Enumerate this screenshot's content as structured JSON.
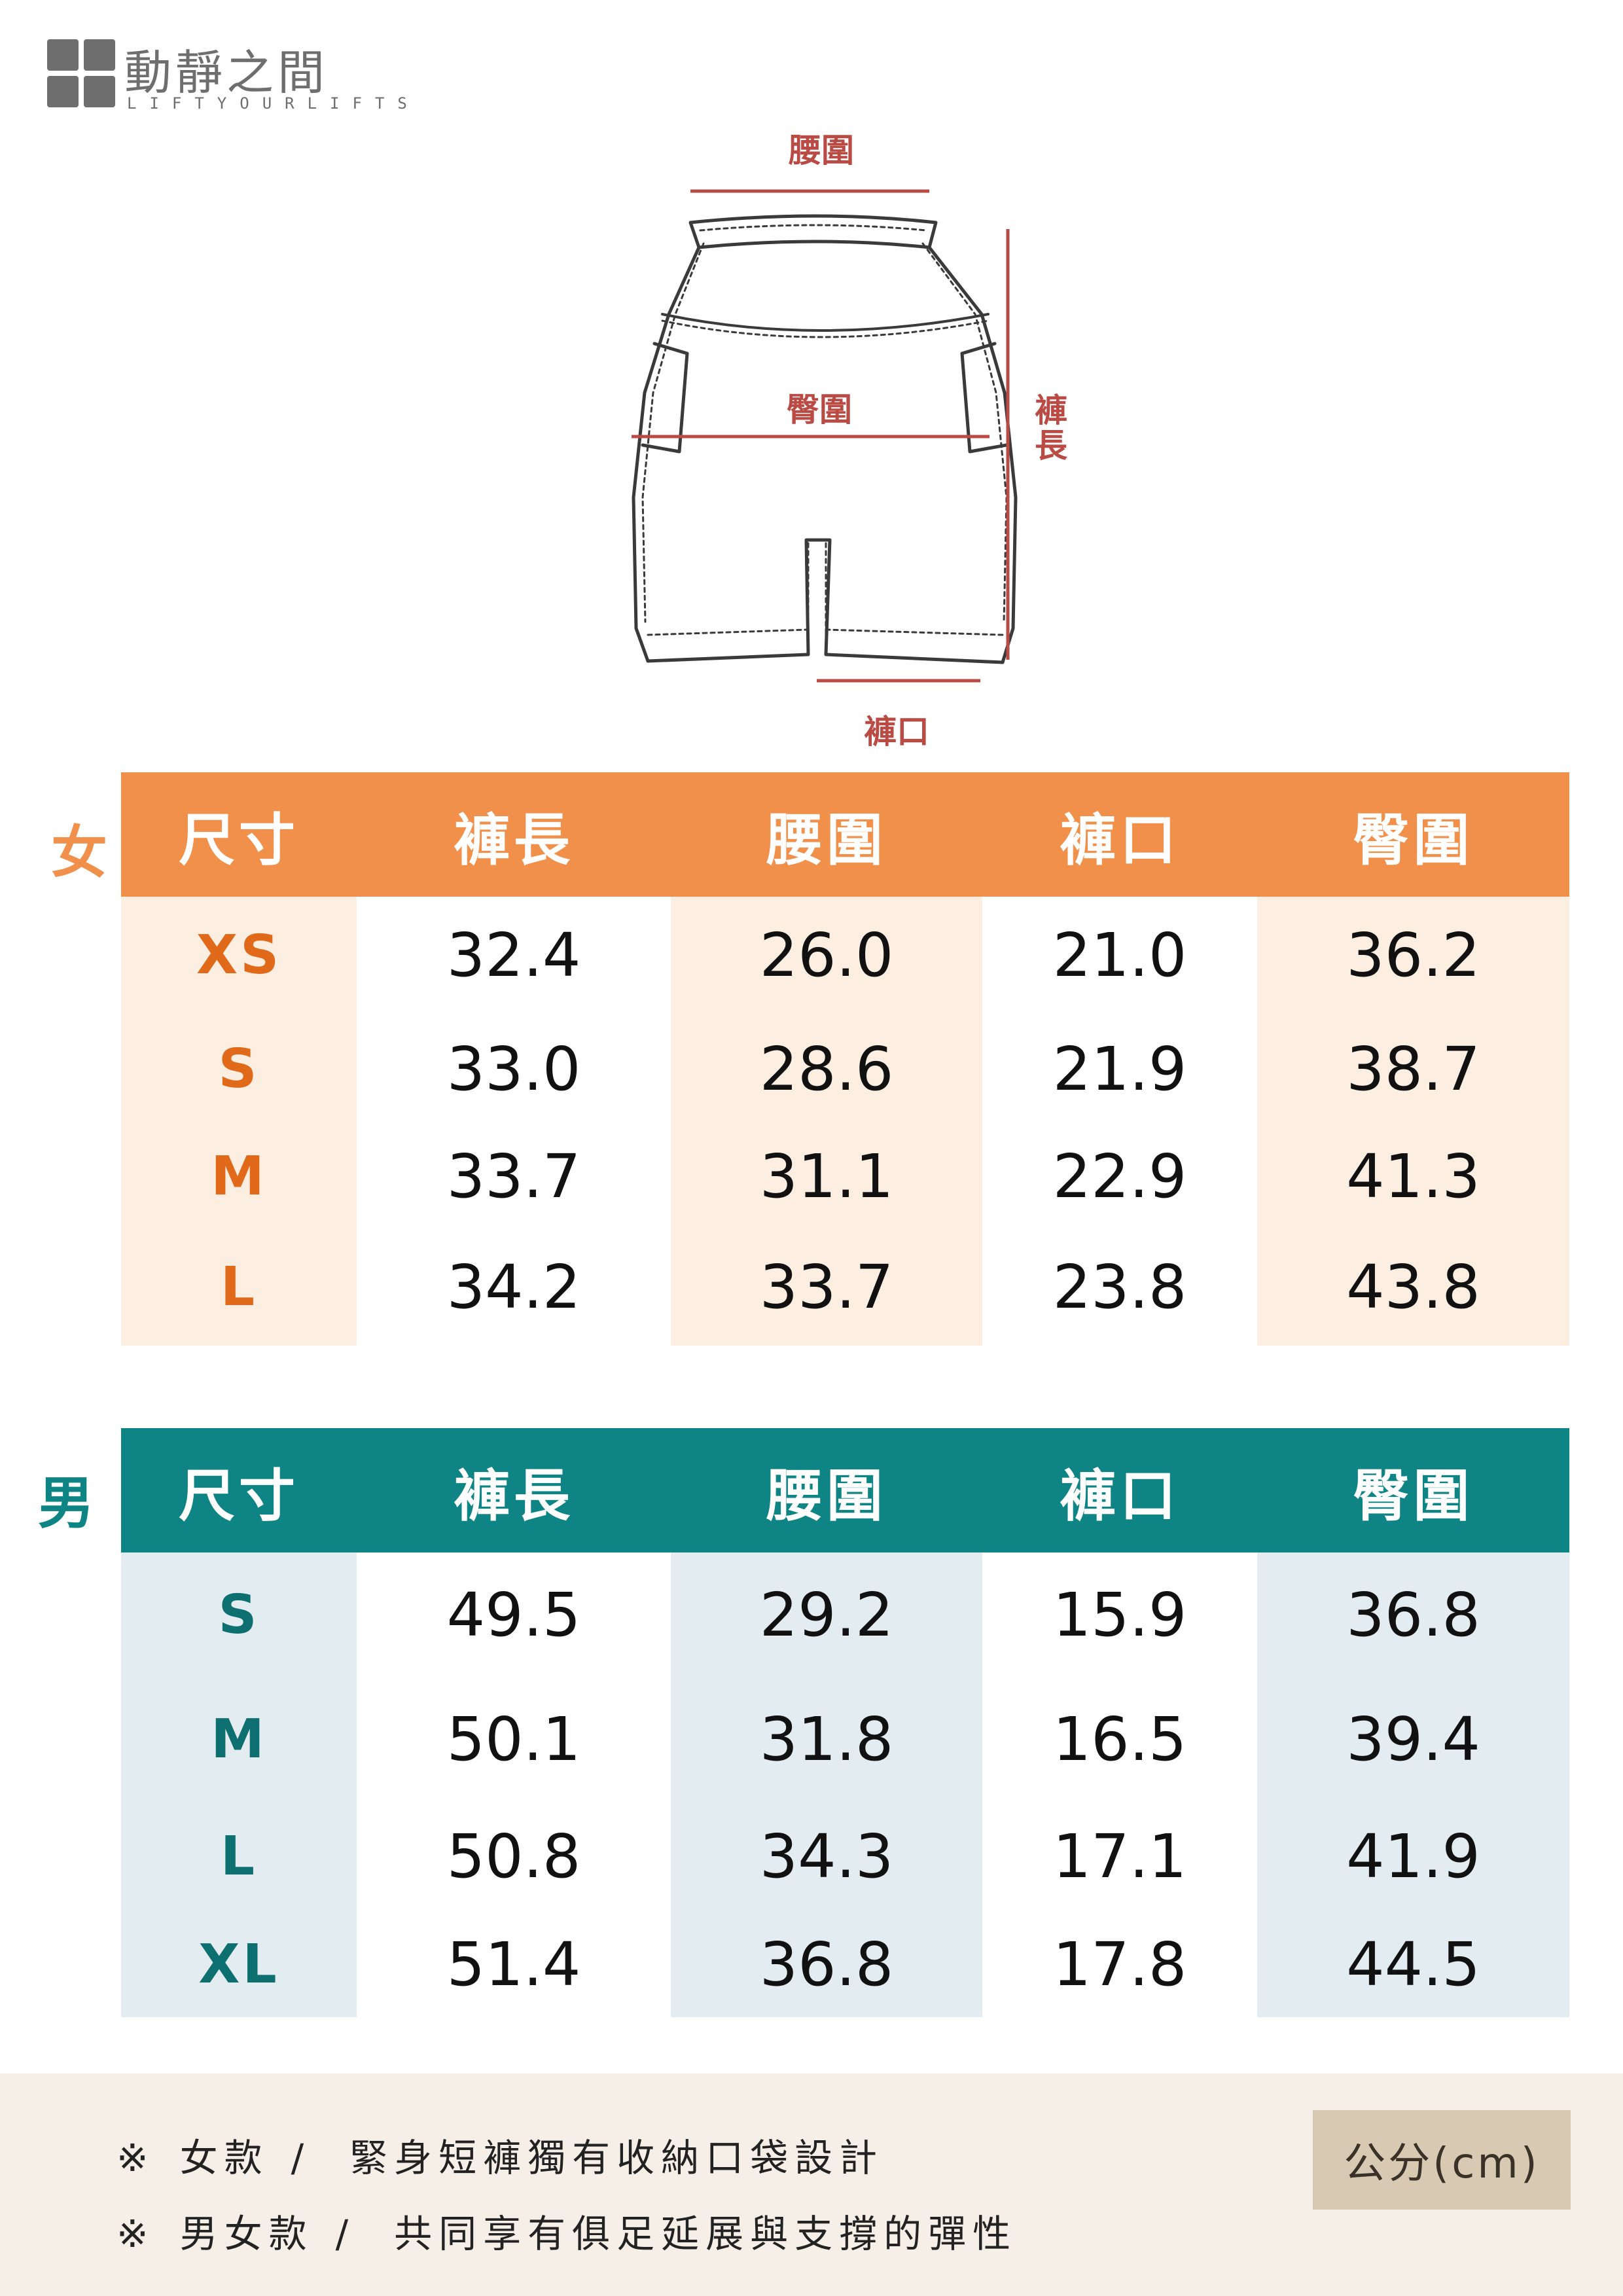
{
  "brand": {
    "name": "動靜之間",
    "tagline": "LIFTYOURLIFTS"
  },
  "diagram": {
    "waist_label": "腰圍",
    "hip_label": "臀圍",
    "length_label": "褲長",
    "opening_label": "褲口",
    "line_color": "#b94a44"
  },
  "women": {
    "label": "女",
    "accent": "#f0904a",
    "size_color": "#e06a1a",
    "tint": "#fdeee2",
    "headers": [
      "尺寸",
      "褲長",
      "腰圍",
      "褲口",
      "臀圍"
    ],
    "rows": [
      [
        "XS",
        "32.4",
        "26.0",
        "21.0",
        "36.2"
      ],
      [
        "S",
        "33.0",
        "28.6",
        "21.9",
        "38.7"
      ],
      [
        "M",
        "33.7",
        "31.1",
        "22.9",
        "41.3"
      ],
      [
        "L",
        "34.2",
        "33.7",
        "23.8",
        "43.8"
      ]
    ]
  },
  "men": {
    "label": "男",
    "accent": "#0e8484",
    "size_color": "#0d6f6f",
    "tint": "#e2ecf1",
    "headers": [
      "尺寸",
      "褲長",
      "腰圍",
      "褲口",
      "臀圍"
    ],
    "rows": [
      [
        "S",
        "49.5",
        "29.2",
        "15.9",
        "36.8"
      ],
      [
        "M",
        "50.1",
        "31.8",
        "16.5",
        "39.4"
      ],
      [
        "L",
        "50.8",
        "34.3",
        "17.1",
        "41.9"
      ],
      [
        "XL",
        "51.4",
        "36.8",
        "17.8",
        "44.5"
      ]
    ]
  },
  "notes": [
    {
      "mark": "※",
      "lead": "女款",
      "slash": "/",
      "text": "緊身短褲獨有收納口袋設計"
    },
    {
      "mark": "※",
      "lead": "男女款",
      "slash": "/",
      "text": "共同享有俱足延展與支撐的彈性"
    }
  ],
  "unit": "公分(cm)"
}
